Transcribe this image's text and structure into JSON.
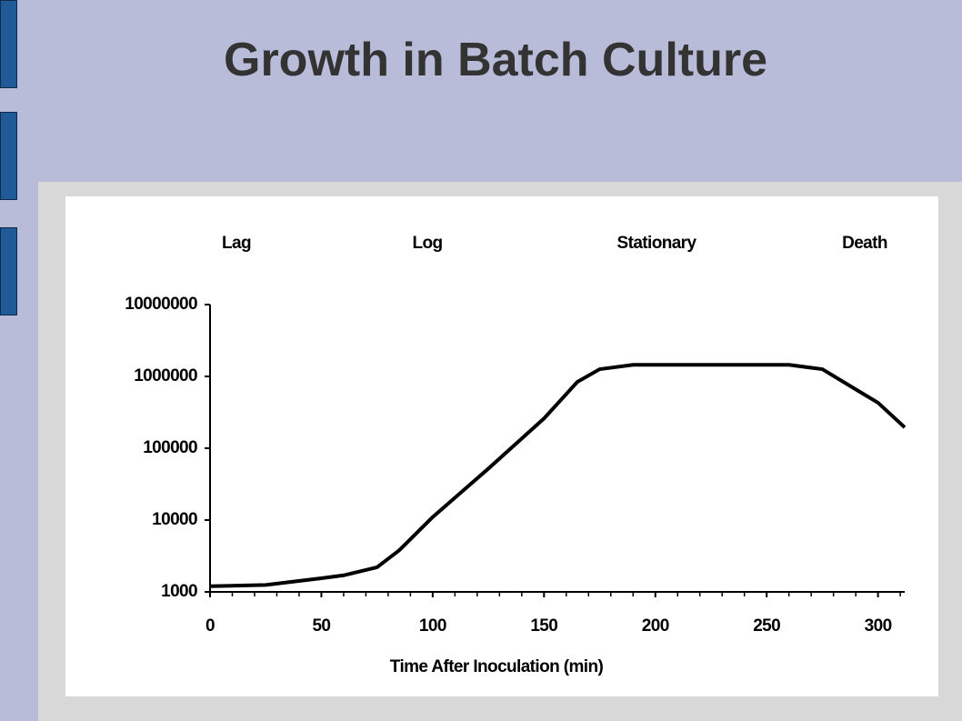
{
  "slide": {
    "title": "Growth in Batch Culture"
  },
  "chart_data": {
    "type": "line",
    "annotations": [
      "Lag",
      "Log",
      "Stationary",
      "Death"
    ],
    "x_label": "Time After Inoculation (min)",
    "x": [
      0,
      25,
      50,
      60,
      75,
      85,
      100,
      125,
      150,
      165,
      175,
      190,
      260,
      275,
      290,
      300,
      312
    ],
    "series": [
      {
        "color": "#000000",
        "values": [
          1200,
          1250,
          1550,
          1700,
          2200,
          3800,
          11000,
          52000,
          260000,
          840000,
          1260000,
          1450000,
          1450000,
          1260000,
          660000,
          430000,
          195000
        ]
      }
    ],
    "xlim": [
      0,
      312
    ],
    "xticks": [
      0,
      50,
      100,
      150,
      200,
      250,
      300
    ],
    "xminorticks": [
      10,
      20,
      30,
      40,
      60,
      70,
      80,
      90,
      110,
      120,
      130,
      140,
      160,
      170,
      180,
      190,
      210,
      220,
      230,
      240,
      260,
      270,
      280,
      290,
      310
    ],
    "ylim": [
      1000,
      10000000
    ],
    "yticks": [
      1000,
      10000,
      100000,
      1000000,
      10000000
    ],
    "log_scale": true,
    "grid": false
  }
}
